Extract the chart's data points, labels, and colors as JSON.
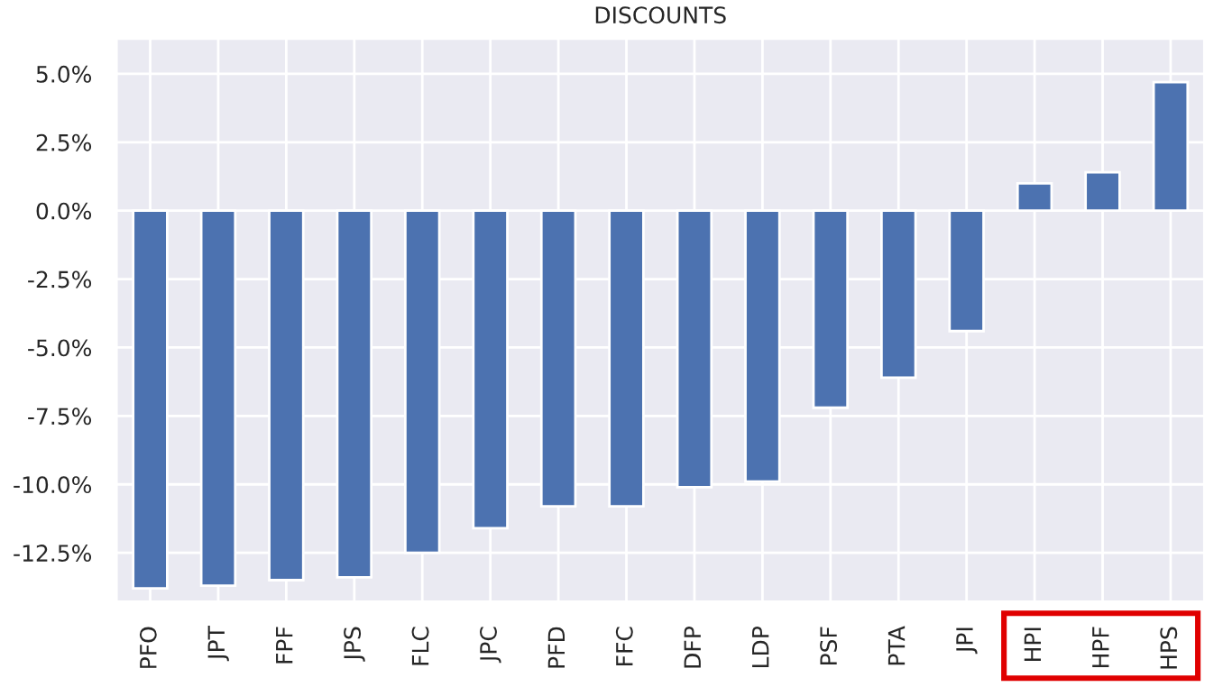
{
  "chart_data": {
    "type": "bar",
    "title": "DISCOUNTS",
    "categories": [
      "PFO",
      "JPT",
      "FPF",
      "JPS",
      "FLC",
      "JPC",
      "PFD",
      "FFC",
      "DFP",
      "LDP",
      "PSF",
      "PTA",
      "JPI",
      "HPI",
      "HPF",
      "HPS"
    ],
    "values": [
      -13.8,
      -13.7,
      -13.5,
      -13.4,
      -12.5,
      -11.6,
      -10.8,
      -10.8,
      -10.1,
      -9.9,
      -7.2,
      -6.1,
      -4.4,
      1.0,
      1.4,
      4.7
    ],
    "color": "#4c72b0",
    "ylim": [
      -14.3,
      6.3
    ],
    "yticks": [
      {
        "value": -12.5,
        "label": "-12.5%"
      },
      {
        "value": -10,
        "label": "-10.0%"
      },
      {
        "value": -7.5,
        "label": "-7.5%"
      },
      {
        "value": -5,
        "label": "-5.0%"
      },
      {
        "value": -2.5,
        "label": "-2.5%"
      },
      {
        "value": 0,
        "label": "0.0%"
      },
      {
        "value": 2.5,
        "label": "2.5%"
      },
      {
        "value": 5,
        "label": "5.0%"
      }
    ],
    "grid": true
  }
}
